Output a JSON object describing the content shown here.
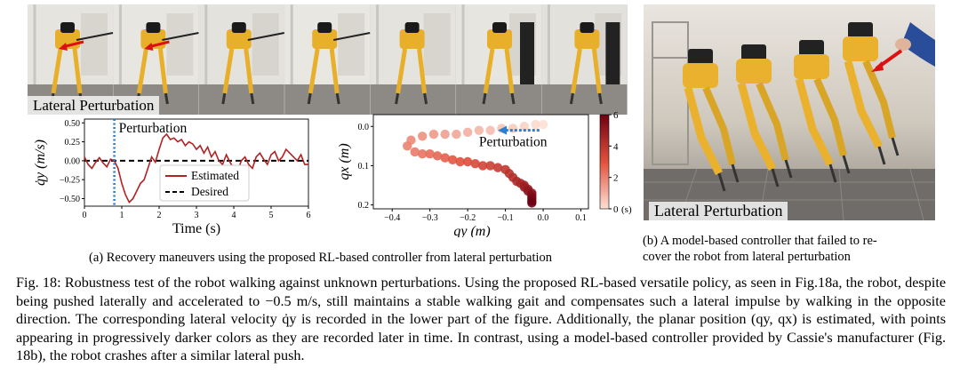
{
  "panel_a": {
    "photo_label": "Lateral Perturbation",
    "caption": "(a) Recovery maneuvers using the proposed RL-based controller from lateral perturbation"
  },
  "panel_b": {
    "photo_label": "Lateral Perturbation",
    "caption_line1": "(b) A model-based controller that failed to re-",
    "caption_line2": "cover the robot from lateral perturbation"
  },
  "figure_caption": {
    "label": "Fig. 18:",
    "text": "Robustness test of the robot walking against unknown perturbations. Using the proposed RL-based versatile policy, as seen in Fig.18a, the robot, despite being pushed laterally and accelerated to −0.5 m/s, still maintains a stable walking gait and compensates such a lateral impulse by walking in the opposite direction. The corresponding lateral velocity q̇y is recorded in the lower part of the figure. Additionally, the planar position (qy, qx) is estimated, with points appearing in progressively darker colors as they are recorded later in time. In contrast, using a model-based controller provided by Cassie's manufacturer (Fig. 18b), the robot crashes after a similar lateral push."
  },
  "chart_data": [
    {
      "type": "line",
      "title": "",
      "annotation": "Perturbation",
      "xlabel": "Time (s)",
      "ylabel": "q̇y (m/s)",
      "xlim": [
        0,
        6
      ],
      "ylim": [
        -0.6,
        0.55
      ],
      "xticks": [
        "0",
        "1",
        "2",
        "3",
        "4",
        "5",
        "6"
      ],
      "yticks": [
        "0.50",
        "0.25",
        "0.00",
        "−0.25",
        "−0.50"
      ],
      "perturbation_time": 0.8,
      "series": [
        {
          "name": "Estimated",
          "color": "#b22222",
          "x": [
            0,
            0.1,
            0.2,
            0.3,
            0.4,
            0.5,
            0.6,
            0.7,
            0.8,
            0.9,
            1.0,
            1.1,
            1.2,
            1.3,
            1.4,
            1.5,
            1.6,
            1.7,
            1.8,
            1.9,
            2.0,
            2.1,
            2.2,
            2.3,
            2.4,
            2.5,
            2.6,
            2.7,
            2.8,
            2.9,
            3.0,
            3.1,
            3.2,
            3.3,
            3.4,
            3.5,
            3.6,
            3.7,
            3.8,
            3.9,
            4.0,
            4.1,
            4.2,
            4.3,
            4.4,
            4.5,
            4.6,
            4.7,
            4.8,
            4.9,
            5.0,
            5.1,
            5.2,
            5.3,
            5.4,
            5.5,
            5.6,
            5.7,
            5.8,
            5.9,
            6.0
          ],
          "y": [
            0.05,
            -0.05,
            -0.1,
            -0.02,
            0.04,
            -0.03,
            -0.08,
            0.02,
            0.0,
            -0.1,
            -0.3,
            -0.45,
            -0.55,
            -0.5,
            -0.4,
            -0.3,
            -0.25,
            -0.1,
            0.05,
            -0.02,
            0.15,
            0.3,
            0.35,
            0.28,
            0.3,
            0.25,
            0.28,
            0.2,
            0.25,
            0.22,
            0.15,
            0.2,
            0.1,
            0.18,
            0.05,
            0.12,
            0.0,
            -0.05,
            0.08,
            -0.02,
            -0.1,
            -0.15,
            0.0,
            0.05,
            -0.05,
            -0.1,
            0.05,
            0.1,
            0.02,
            -0.05,
            0.08,
            0.12,
            0.0,
            0.05,
            0.15,
            0.1,
            0.05,
            0.0,
            0.08,
            -0.05,
            -0.05
          ]
        },
        {
          "name": "Desired",
          "color": "#000000",
          "x": [
            0,
            6
          ],
          "y": [
            0,
            0
          ]
        }
      ]
    },
    {
      "type": "scatter",
      "title": "",
      "annotation": "Perturbation",
      "xlabel": "qy (m)",
      "ylabel": "qx (m)",
      "xlim": [
        -0.45,
        0.12
      ],
      "ylim": [
        0.21,
        -0.03
      ],
      "xticks": [
        "−0.4",
        "−0.3",
        "−0.2",
        "−0.1",
        "0.0",
        "0.1"
      ],
      "yticks": [
        "0.0",
        "0.1",
        "0.2"
      ],
      "colorbar": {
        "label": "(s)",
        "min": 0,
        "max": 6,
        "ticks": [
          "6",
          "4",
          "2",
          "0"
        ]
      },
      "points": {
        "t": [
          0.0,
          0.15,
          0.3,
          0.45,
          0.6,
          0.75,
          0.9,
          1.05,
          1.2,
          1.35,
          1.5,
          1.65,
          1.8,
          1.95,
          2.1,
          2.25,
          2.4,
          2.55,
          2.7,
          2.85,
          3.0,
          3.15,
          3.3,
          3.45,
          3.6,
          3.75,
          3.9,
          4.05,
          4.2,
          4.35,
          4.5,
          4.65,
          4.8,
          4.95,
          5.1,
          5.25,
          5.4,
          5.55,
          5.7,
          5.85,
          6.0
        ],
        "qy": [
          0.0,
          -0.02,
          -0.05,
          -0.08,
          -0.11,
          -0.14,
          -0.17,
          -0.2,
          -0.23,
          -0.26,
          -0.29,
          -0.32,
          -0.35,
          -0.36,
          -0.34,
          -0.32,
          -0.3,
          -0.28,
          -0.26,
          -0.24,
          -0.22,
          -0.2,
          -0.18,
          -0.16,
          -0.14,
          -0.12,
          -0.1,
          -0.09,
          -0.08,
          -0.07,
          -0.06,
          -0.05,
          -0.05,
          -0.04,
          -0.04,
          -0.03,
          -0.03,
          -0.03,
          -0.03,
          -0.03,
          -0.03
        ],
        "qx": [
          -0.005,
          -0.005,
          0.0,
          0.005,
          0.005,
          0.01,
          0.01,
          0.015,
          0.02,
          0.02,
          0.02,
          0.025,
          0.035,
          0.05,
          0.065,
          0.07,
          0.07,
          0.075,
          0.08,
          0.085,
          0.09,
          0.09,
          0.095,
          0.1,
          0.1,
          0.105,
          0.11,
          0.12,
          0.13,
          0.14,
          0.145,
          0.15,
          0.155,
          0.16,
          0.165,
          0.17,
          0.175,
          0.18,
          0.185,
          0.19,
          0.195
        ]
      },
      "arrow": {
        "from_qy": -0.01,
        "to_qy": -0.12,
        "qx": 0.01
      }
    }
  ]
}
